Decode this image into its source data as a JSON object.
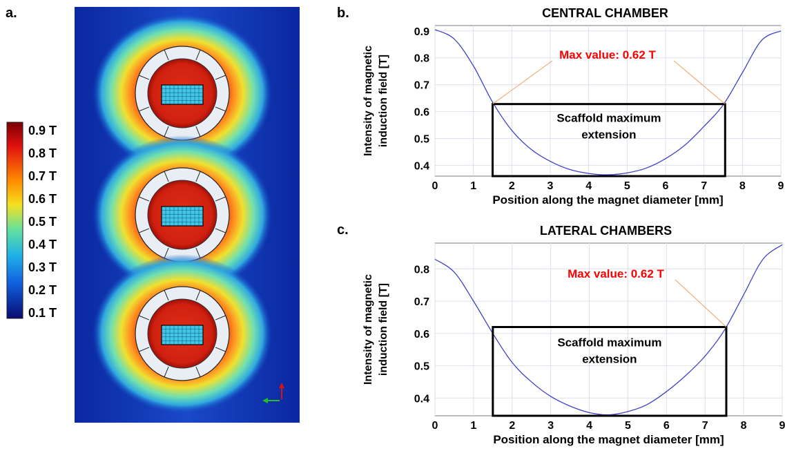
{
  "panel_labels": {
    "a": "a.",
    "b": "b.",
    "c": "c."
  },
  "simulation": {
    "colorbar_labels": [
      "0.9 T",
      "0.8 T",
      "0.7 T",
      "0.6 T",
      "0.5 T",
      "0.4 T",
      "0.3 T",
      "0.2 T",
      "0.1 T"
    ],
    "colors": {
      "field_low": "#0a2a8c",
      "field_mid": "#3cc8d8",
      "field_high": "#e02010",
      "axis_x_arrow": "#20c020",
      "axis_y_arrow": "#e01010"
    }
  },
  "chart_data": [
    {
      "type": "line",
      "title": "CENTRAL CHAMBER",
      "xlabel": "Position along the magnet diameter [mm]",
      "ylabel": [
        "Intensity of magnetic",
        "induction field [T]"
      ],
      "xlim": [
        0,
        9
      ],
      "ylim": [
        0.36,
        0.92
      ],
      "xticks": [
        0,
        1,
        2,
        3,
        4,
        5,
        6,
        7,
        8,
        9
      ],
      "yticks": [
        0.4,
        0.5,
        0.6,
        0.7,
        0.8,
        0.9
      ],
      "grid": true,
      "series": [
        {
          "color": "#4040c8",
          "x": [
            0,
            0.5,
            1,
            1.5,
            2,
            2.5,
            3,
            3.5,
            4,
            4.5,
            5,
            5.5,
            6,
            6.5,
            7,
            7.5,
            8,
            8.5,
            9
          ],
          "y": [
            0.905,
            0.87,
            0.77,
            0.635,
            0.53,
            0.46,
            0.415,
            0.385,
            0.37,
            0.365,
            0.372,
            0.39,
            0.425,
            0.475,
            0.545,
            0.625,
            0.745,
            0.865,
            0.9
          ]
        }
      ],
      "annotation": {
        "text": "Max value: 0.62 T",
        "color": "#ff0000",
        "line_color": "#f0a060"
      },
      "box": {
        "text_lines": [
          "Scaffold maximum",
          "extension"
        ],
        "x": [
          1.5,
          7.55
        ],
        "y_top": 0.628
      }
    },
    {
      "type": "line",
      "title": "LATERAL CHAMBERS",
      "xlabel": "Position along the magnet diameter [mm]",
      "ylabel": [
        "Intensity of magnetic",
        "induction field [T]"
      ],
      "xlim": [
        0,
        9
      ],
      "ylim": [
        0.345,
        0.88
      ],
      "xticks": [
        0,
        1,
        2,
        3,
        4,
        5,
        6,
        7,
        8,
        9
      ],
      "yticks": [
        0.4,
        0.5,
        0.6,
        0.7,
        0.8
      ],
      "grid": true,
      "series": [
        {
          "color": "#4040c8",
          "x": [
            0,
            0.5,
            1,
            1.5,
            2,
            2.5,
            3,
            3.5,
            4,
            4.5,
            5,
            5.5,
            6,
            6.5,
            7,
            7.5,
            8,
            8.5,
            9
          ],
          "y": [
            0.83,
            0.79,
            0.7,
            0.6,
            0.51,
            0.45,
            0.405,
            0.375,
            0.355,
            0.348,
            0.358,
            0.38,
            0.42,
            0.47,
            0.53,
            0.61,
            0.72,
            0.83,
            0.875
          ]
        }
      ],
      "annotation": {
        "text": "Max value: 0.62 T",
        "color": "#ff0000",
        "line_color": "#f0a060"
      },
      "box": {
        "text_lines": [
          "Scaffold maximum",
          "extension"
        ],
        "x": [
          1.5,
          7.55
        ],
        "y_top": 0.62
      }
    }
  ]
}
